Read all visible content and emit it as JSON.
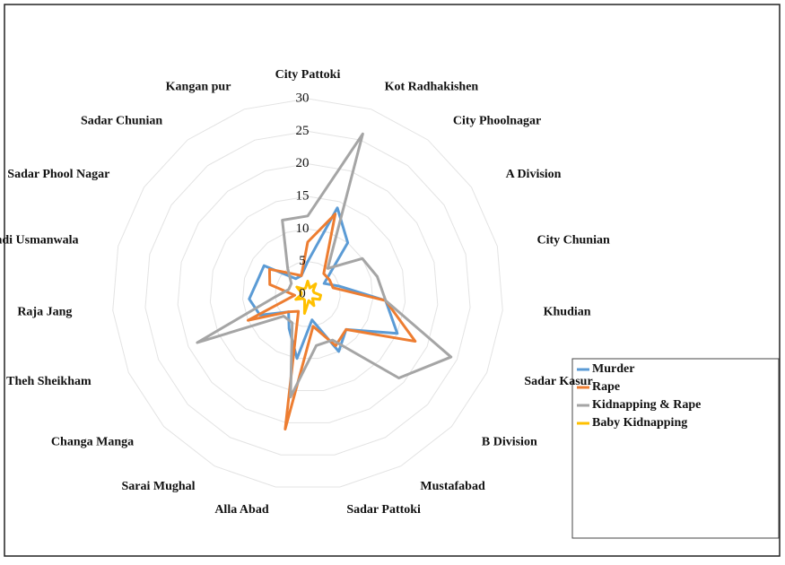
{
  "chart_data": {
    "type": "radar",
    "categories": [
      "City Pattoki",
      "Kot Radhakishen",
      "City Phoolnagar",
      "A Division",
      "City  Chunian",
      "Khudian",
      "Sadar Kasur",
      "B Division",
      "Mustafabad",
      "Sadar Pattoki",
      "Alla Abad",
      "Sarai Mughal",
      "Changa Manga",
      "Theh Sheikham",
      "Raja Jang",
      "Mandi Usmanwala",
      "Sadar Phool Nagar",
      "Sadar Chunian",
      "Kangan pur"
    ],
    "series": [
      {
        "name": "Murder",
        "color": "#5b9bd5",
        "values": [
          5,
          14,
          10,
          3,
          5,
          12,
          15,
          8,
          10,
          4,
          10,
          6,
          4,
          8,
          9,
          8,
          8,
          3,
          3
        ]
      },
      {
        "name": "Rape",
        "color": "#ed7d31",
        "values": [
          8,
          13,
          4,
          4,
          4,
          12,
          18,
          8,
          9,
          5,
          21,
          3,
          4,
          10,
          2,
          6,
          7,
          4,
          3
        ]
      },
      {
        "name": "Kidnapping & Rape",
        "color": "#a5a5a5",
        "values": [
          12,
          26,
          5,
          10,
          11,
          12,
          24,
          19,
          8,
          8,
          16,
          5,
          5,
          18.5,
          5,
          3,
          3,
          5,
          12
        ]
      },
      {
        "name": "Baby Kidnapping",
        "color": "#ffc000",
        "values": [
          2,
          1,
          2,
          1,
          1,
          2,
          2,
          1,
          2,
          1,
          3,
          1,
          1,
          2,
          1,
          1,
          2,
          1,
          1
        ]
      }
    ],
    "ylim": [
      0,
      30
    ],
    "yticks": [
      0,
      5,
      10,
      15,
      20,
      25,
      30
    ],
    "grid": true,
    "legend": "right"
  }
}
